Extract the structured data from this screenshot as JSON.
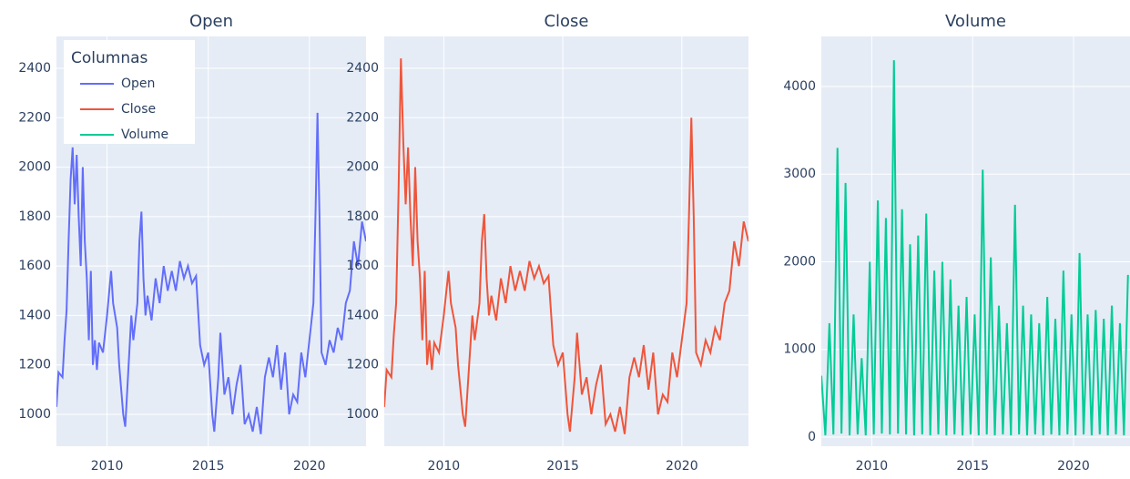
{
  "chart_data": [
    {
      "type": "line",
      "title": "Open",
      "x": [
        2007.5,
        2007.6,
        2007.8,
        2007.9,
        2008.0,
        2008.1,
        2008.2,
        2008.3,
        2008.4,
        2008.5,
        2008.6,
        2008.7,
        2008.8,
        2008.9,
        2009.0,
        2009.1,
        2009.2,
        2009.3,
        2009.4,
        2009.5,
        2009.6,
        2009.8,
        2010.0,
        2010.2,
        2010.3,
        2010.5,
        2010.6,
        2010.8,
        2010.9,
        2011.0,
        2011.2,
        2011.3,
        2011.5,
        2011.6,
        2011.7,
        2011.8,
        2011.9,
        2012.0,
        2012.2,
        2012.4,
        2012.6,
        2012.8,
        2013.0,
        2013.2,
        2013.4,
        2013.6,
        2013.8,
        2014.0,
        2014.2,
        2014.4,
        2014.6,
        2014.8,
        2015.0,
        2015.2,
        2015.3,
        2015.5,
        2015.6,
        2015.8,
        2016.0,
        2016.2,
        2016.4,
        2016.6,
        2016.8,
        2017.0,
        2017.2,
        2017.4,
        2017.6,
        2017.8,
        2018.0,
        2018.2,
        2018.4,
        2018.6,
        2018.8,
        2019.0,
        2019.2,
        2019.4,
        2019.6,
        2019.8,
        2020.0,
        2020.2,
        2020.3,
        2020.4,
        2020.5,
        2020.6,
        2020.8,
        2021.0,
        2021.2,
        2021.4,
        2021.6,
        2021.8,
        2022.0,
        2022.2,
        2022.4,
        2022.6,
        2022.8
      ],
      "series": [
        {
          "name": "Open",
          "color": "#636efa",
          "values": [
            1030,
            1170,
            1150,
            1300,
            1420,
            1700,
            1950,
            2080,
            1850,
            2050,
            1800,
            1600,
            2000,
            1700,
            1550,
            1300,
            1580,
            1200,
            1300,
            1180,
            1290,
            1250,
            1400,
            1580,
            1450,
            1350,
            1200,
            1000,
            950,
            1100,
            1400,
            1300,
            1450,
            1700,
            1820,
            1550,
            1400,
            1480,
            1380,
            1550,
            1450,
            1600,
            1500,
            1580,
            1500,
            1620,
            1550,
            1600,
            1530,
            1560,
            1280,
            1200,
            1250,
            1000,
            930,
            1150,
            1330,
            1080,
            1150,
            1000,
            1120,
            1200,
            960,
            1000,
            930,
            1030,
            920,
            1150,
            1230,
            1150,
            1280,
            1100,
            1250,
            1000,
            1080,
            1050,
            1250,
            1150,
            1300,
            1450,
            1800,
            2220,
            1800,
            1250,
            1200,
            1300,
            1250,
            1350,
            1300,
            1450,
            1500,
            1700,
            1600,
            1780,
            1700
          ]
        }
      ],
      "xlim": [
        2007.5,
        2022.8
      ],
      "xticks": [
        2010,
        2015,
        2020
      ],
      "ylim": [
        871,
        2529
      ],
      "yticks": [
        1000,
        1200,
        1400,
        1600,
        1800,
        2000,
        2200,
        2400
      ],
      "grid": true,
      "legend": {
        "title": "Columnas",
        "position": "top-left"
      }
    },
    {
      "type": "line",
      "title": "Close",
      "x": [
        2007.5,
        2007.6,
        2007.8,
        2007.9,
        2008.0,
        2008.1,
        2008.2,
        2008.3,
        2008.4,
        2008.5,
        2008.6,
        2008.7,
        2008.8,
        2008.9,
        2009.0,
        2009.1,
        2009.2,
        2009.3,
        2009.4,
        2009.5,
        2009.6,
        2009.8,
        2010.0,
        2010.2,
        2010.3,
        2010.5,
        2010.6,
        2010.8,
        2010.9,
        2011.0,
        2011.2,
        2011.3,
        2011.5,
        2011.6,
        2011.7,
        2011.8,
        2011.9,
        2012.0,
        2012.2,
        2012.4,
        2012.6,
        2012.8,
        2013.0,
        2013.2,
        2013.4,
        2013.6,
        2013.8,
        2014.0,
        2014.2,
        2014.4,
        2014.6,
        2014.8,
        2015.0,
        2015.2,
        2015.3,
        2015.5,
        2015.6,
        2015.8,
        2016.0,
        2016.2,
        2016.4,
        2016.6,
        2016.8,
        2017.0,
        2017.2,
        2017.4,
        2017.6,
        2017.8,
        2018.0,
        2018.2,
        2018.4,
        2018.6,
        2018.8,
        2019.0,
        2019.2,
        2019.4,
        2019.6,
        2019.8,
        2020.0,
        2020.2,
        2020.3,
        2020.4,
        2020.5,
        2020.6,
        2020.8,
        2021.0,
        2021.2,
        2021.4,
        2021.6,
        2021.8,
        2022.0,
        2022.2,
        2022.4,
        2022.6,
        2022.8
      ],
      "series": [
        {
          "name": "Close",
          "color": "#ef553b",
          "values": [
            1030,
            1180,
            1150,
            1320,
            1450,
            1900,
            2440,
            2100,
            1850,
            2080,
            1800,
            1600,
            2000,
            1700,
            1550,
            1300,
            1580,
            1200,
            1300,
            1180,
            1290,
            1250,
            1400,
            1580,
            1450,
            1350,
            1200,
            1000,
            950,
            1100,
            1400,
            1300,
            1450,
            1700,
            1810,
            1550,
            1400,
            1480,
            1380,
            1550,
            1450,
            1600,
            1500,
            1580,
            1500,
            1620,
            1550,
            1600,
            1530,
            1560,
            1280,
            1200,
            1250,
            1000,
            930,
            1150,
            1330,
            1080,
            1150,
            1000,
            1120,
            1200,
            960,
            1000,
            930,
            1030,
            920,
            1150,
            1230,
            1150,
            1280,
            1100,
            1250,
            1000,
            1080,
            1050,
            1250,
            1150,
            1300,
            1450,
            1800,
            2200,
            1800,
            1250,
            1200,
            1300,
            1250,
            1350,
            1300,
            1450,
            1500,
            1700,
            1600,
            1780,
            1700
          ]
        }
      ],
      "xlim": [
        2007.5,
        2022.8
      ],
      "xticks": [
        2010,
        2015,
        2020
      ],
      "ylim": [
        871,
        2529
      ],
      "yticks": [
        1000,
        1200,
        1400,
        1600,
        1800,
        2000,
        2200,
        2400
      ],
      "grid": true
    },
    {
      "type": "line",
      "title": "Volume",
      "x": [
        2007.5,
        2007.7,
        2007.9,
        2008.1,
        2008.3,
        2008.5,
        2008.7,
        2008.9,
        2009.1,
        2009.3,
        2009.5,
        2009.7,
        2009.9,
        2010.1,
        2010.3,
        2010.5,
        2010.7,
        2010.9,
        2011.1,
        2011.3,
        2011.5,
        2011.7,
        2011.9,
        2012.1,
        2012.3,
        2012.5,
        2012.7,
        2012.9,
        2013.1,
        2013.3,
        2013.5,
        2013.7,
        2013.9,
        2014.1,
        2014.3,
        2014.5,
        2014.7,
        2014.9,
        2015.1,
        2015.3,
        2015.5,
        2015.7,
        2015.9,
        2016.1,
        2016.3,
        2016.5,
        2016.7,
        2016.9,
        2017.1,
        2017.3,
        2017.5,
        2017.7,
        2017.9,
        2018.1,
        2018.3,
        2018.5,
        2018.7,
        2018.9,
        2019.1,
        2019.3,
        2019.5,
        2019.7,
        2019.9,
        2020.1,
        2020.3,
        2020.5,
        2020.7,
        2020.9,
        2021.1,
        2021.3,
        2021.5,
        2021.7,
        2021.9,
        2022.1,
        2022.3,
        2022.5,
        2022.7
      ],
      "series": [
        {
          "name": "Volume",
          "color": "#00cc96",
          "values": [
            700,
            20,
            1300,
            30,
            3300,
            40,
            2900,
            20,
            1400,
            30,
            900,
            20,
            2000,
            30,
            2700,
            40,
            2500,
            30,
            4300,
            40,
            2600,
            30,
            2200,
            20,
            2300,
            30,
            2550,
            20,
            1900,
            30,
            2000,
            20,
            1800,
            30,
            1500,
            20,
            1600,
            30,
            1400,
            20,
            3050,
            30,
            2050,
            20,
            1500,
            30,
            1300,
            20,
            2650,
            30,
            1500,
            20,
            1400,
            30,
            1300,
            20,
            1600,
            30,
            1350,
            20,
            1900,
            30,
            1400,
            20,
            2100,
            30,
            1400,
            20,
            1450,
            30,
            1350,
            20,
            1500,
            30,
            1300,
            20,
            1850
          ]
        }
      ],
      "xlim": [
        2007.5,
        2022.8
      ],
      "xticks": [
        2010,
        2015,
        2020
      ],
      "ylim": [
        -104,
        4571
      ],
      "yticks": [
        0,
        1000,
        2000,
        3000,
        4000
      ],
      "grid": true
    }
  ]
}
